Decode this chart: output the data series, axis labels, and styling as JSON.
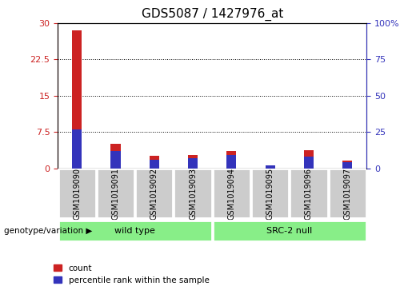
{
  "title": "GDS5087 / 1427976_at",
  "samples": [
    "GSM1019090",
    "GSM1019091",
    "GSM1019092",
    "GSM1019093",
    "GSM1019094",
    "GSM1019095",
    "GSM1019096",
    "GSM1019097"
  ],
  "count_values": [
    28.5,
    5.0,
    2.5,
    2.8,
    3.5,
    0.6,
    3.8,
    1.5
  ],
  "percentile_values": [
    27.0,
    12.0,
    6.0,
    7.0,
    9.0,
    2.0,
    8.0,
    4.0
  ],
  "count_color": "#cc2222",
  "percentile_color": "#3333bb",
  "bar_width": 0.25,
  "ylim_left": [
    0,
    30
  ],
  "ylim_right": [
    0,
    100
  ],
  "yticks_left": [
    0,
    7.5,
    15,
    22.5,
    30
  ],
  "yticks_right": [
    0,
    25,
    50,
    75,
    100
  ],
  "ytick_labels_left": [
    "0",
    "7.5",
    "15",
    "22.5",
    "30"
  ],
  "ytick_labels_right": [
    "0",
    "25",
    "50",
    "75",
    "100%"
  ],
  "grid_color": "black",
  "plot_bg": "#ffffff",
  "group1_label": "wild type",
  "group2_label": "SRC-2 null",
  "group1_indices": [
    0,
    1,
    2,
    3
  ],
  "group2_indices": [
    4,
    5,
    6,
    7
  ],
  "group_bg": "#88ee88",
  "sample_col_bg": "#cccccc",
  "genotype_label": "genotype/variation",
  "legend_count": "count",
  "legend_percentile": "percentile rank within the sample",
  "title_fontsize": 11,
  "tick_fontsize": 8,
  "label_fontsize": 8
}
